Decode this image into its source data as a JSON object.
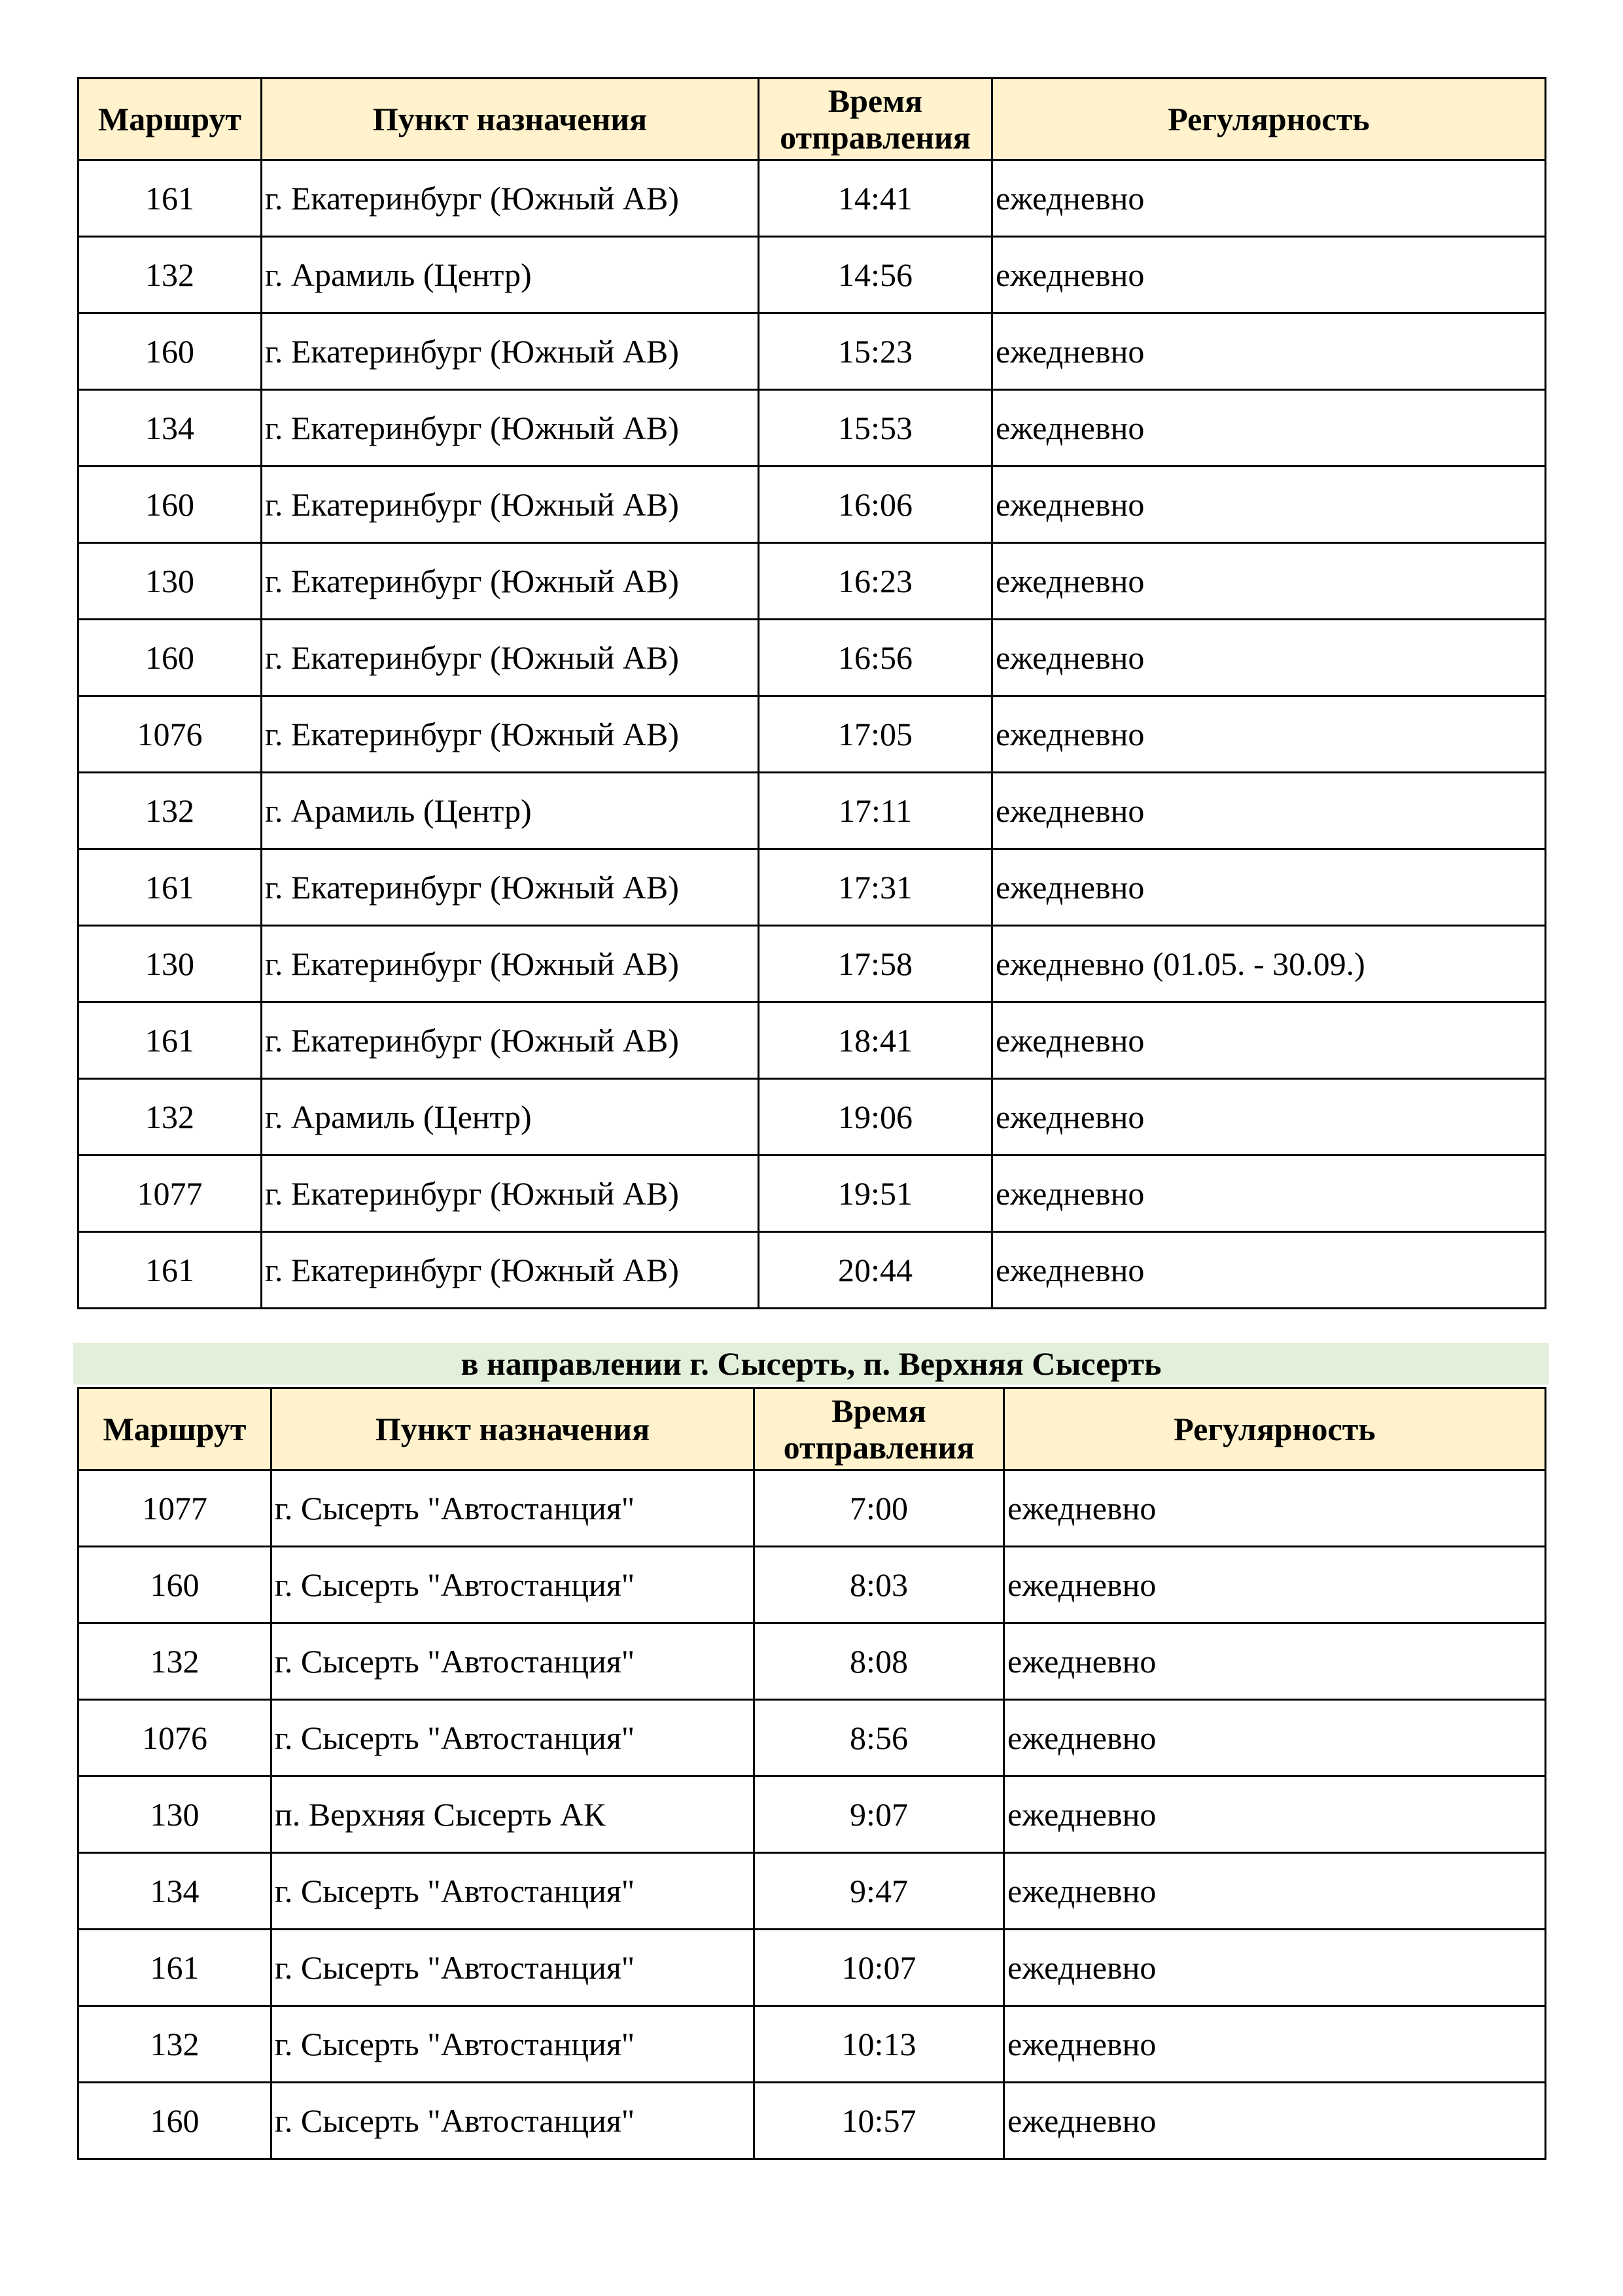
{
  "headers": {
    "route": "Маршрут",
    "destination": "Пункт назначения",
    "time_line1": "Время",
    "time_line2": "отправления",
    "regularity": "Регулярность"
  },
  "section_title": "в направлении г. Сысерть, п. Верхняя Сысерть",
  "colors": {
    "header_bg": "#fff2cc",
    "section_bg": "#e2efda"
  },
  "table1": [
    {
      "route": "161",
      "destination": "г. Екатеринбург (Южный АВ)",
      "time": "14:41",
      "regularity": "ежедневно"
    },
    {
      "route": "132",
      "destination": "г. Арамиль (Центр)",
      "time": "14:56",
      "regularity": "ежедневно"
    },
    {
      "route": "160",
      "destination": "г. Екатеринбург (Южный АВ)",
      "time": "15:23",
      "regularity": "ежедневно"
    },
    {
      "route": "134",
      "destination": "г. Екатеринбург (Южный АВ)",
      "time": "15:53",
      "regularity": "ежедневно"
    },
    {
      "route": "160",
      "destination": "г. Екатеринбург (Южный АВ)",
      "time": "16:06",
      "regularity": "ежедневно"
    },
    {
      "route": "130",
      "destination": "г. Екатеринбург (Южный АВ)",
      "time": "16:23",
      "regularity": "ежедневно"
    },
    {
      "route": "160",
      "destination": "г. Екатеринбург (Южный АВ)",
      "time": "16:56",
      "regularity": "ежедневно"
    },
    {
      "route": "1076",
      "destination": "г. Екатеринбург (Южный АВ)",
      "time": "17:05",
      "regularity": "ежедневно"
    },
    {
      "route": "132",
      "destination": "г. Арамиль (Центр)",
      "time": "17:11",
      "regularity": "ежедневно"
    },
    {
      "route": "161",
      "destination": "г. Екатеринбург (Южный АВ)",
      "time": "17:31",
      "regularity": "ежедневно"
    },
    {
      "route": "130",
      "destination": "г. Екатеринбург (Южный АВ)",
      "time": "17:58",
      "regularity": "ежедневно (01.05. - 30.09.)"
    },
    {
      "route": "161",
      "destination": "г. Екатеринбург (Южный АВ)",
      "time": "18:41",
      "regularity": "ежедневно"
    },
    {
      "route": "132",
      "destination": "г. Арамиль (Центр)",
      "time": "19:06",
      "regularity": "ежедневно"
    },
    {
      "route": "1077",
      "destination": "г. Екатеринбург (Южный АВ)",
      "time": "19:51",
      "regularity": "ежедневно"
    },
    {
      "route": "161",
      "destination": "г. Екатеринбург (Южный АВ)",
      "time": "20:44",
      "regularity": "ежедневно"
    }
  ],
  "table2": [
    {
      "route": "1077",
      "destination": "г. Сысерть \"Автостанция\"",
      "time": "7:00",
      "regularity": "ежедневно"
    },
    {
      "route": "160",
      "destination": "г. Сысерть \"Автостанция\"",
      "time": "8:03",
      "regularity": "ежедневно"
    },
    {
      "route": "132",
      "destination": "г. Сысерть \"Автостанция\"",
      "time": "8:08",
      "regularity": "ежедневно"
    },
    {
      "route": "1076",
      "destination": "г. Сысерть \"Автостанция\"",
      "time": "8:56",
      "regularity": "ежедневно"
    },
    {
      "route": "130",
      "destination": "п. Верхняя Сысерть АК",
      "time": "9:07",
      "regularity": "ежедневно"
    },
    {
      "route": "134",
      "destination": "г. Сысерть \"Автостанция\"",
      "time": "9:47",
      "regularity": "ежедневно"
    },
    {
      "route": "161",
      "destination": "г. Сысерть \"Автостанция\"",
      "time": "10:07",
      "regularity": "ежедневно"
    },
    {
      "route": "132",
      "destination": "г. Сысерть \"Автостанция\"",
      "time": "10:13",
      "regularity": "ежедневно"
    },
    {
      "route": "160",
      "destination": "г. Сысерть \"Автостанция\"",
      "time": "10:57",
      "regularity": "ежедневно"
    }
  ]
}
